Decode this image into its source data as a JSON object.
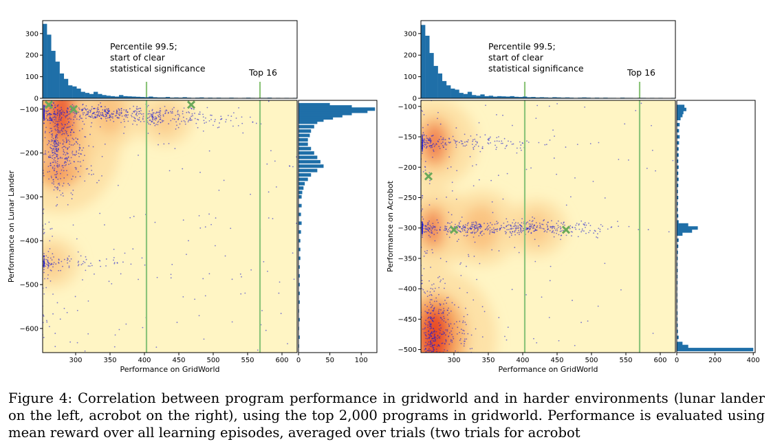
{
  "caption": {
    "line1": "Figure 4: Correlation between program performance in gridworld and in harder environments (lunar",
    "line2": "lander on the left, acrobot on the right), using the top 2,000 programs in gridworld. Performance is",
    "line3": "evaluated using mean reward over all learning episodes, averaged over trials (two trials for acrobot"
  },
  "colors": {
    "hist": "#1f6fa8",
    "points": "#2020d0",
    "marker": "#6aa95a",
    "vline": "#8cc47a"
  },
  "chart_data": [
    {
      "id": "left",
      "type": "scatter",
      "xlabel": "Performance on GridWorld",
      "ylabel": "Performance on Lunar Lander",
      "xlim": [
        252,
        622
      ],
      "ylim": [
        -655,
        -80
      ],
      "xticks": [
        300,
        350,
        400,
        450,
        500,
        550,
        600
      ],
      "yticks": [
        -100,
        -200,
        -300,
        -400,
        -500,
        -600
      ],
      "vlines": [
        403,
        568
      ],
      "annotations": [
        "Percentile 99.5;",
        "start of clear",
        "statistical significance",
        "Top 16"
      ],
      "markers": [
        [
          261,
          -90
        ],
        [
          297,
          -100
        ],
        [
          468,
          -90
        ]
      ],
      "density_centers": [
        [
          275,
          -180,
          1.0
        ],
        [
          280,
          -110,
          0.8
        ],
        [
          350,
          -108,
          0.45
        ],
        [
          430,
          -125,
          0.3
        ],
        [
          265,
          -450,
          0.3
        ]
      ],
      "top_hist": {
        "ylim": [
          0,
          360
        ],
        "yticks": [
          0,
          100,
          200,
          300
        ],
        "values": [
          345,
          295,
          220,
          170,
          115,
          90,
          60,
          55,
          45,
          30,
          25,
          20,
          30,
          20,
          15,
          12,
          10,
          8,
          15,
          10,
          9,
          8,
          7,
          6,
          5,
          8,
          5,
          4,
          4,
          6,
          3,
          4,
          3,
          5,
          3,
          2,
          3,
          4,
          2,
          3,
          2,
          3,
          2,
          2,
          3,
          2,
          1,
          2,
          3,
          2,
          1,
          2,
          2,
          3,
          1,
          2,
          1,
          2,
          1,
          2
        ]
      },
      "right_hist": {
        "xlim": [
          0,
          125
        ],
        "xticks": [
          0,
          50,
          100
        ],
        "bins": [
          [
            -90,
            50
          ],
          [
            -95,
            85
          ],
          [
            -100,
            122
          ],
          [
            -105,
            110
          ],
          [
            -110,
            85
          ],
          [
            -115,
            70
          ],
          [
            -120,
            55
          ],
          [
            -125,
            40
          ],
          [
            -130,
            30
          ],
          [
            -140,
            25
          ],
          [
            -150,
            20
          ],
          [
            -160,
            18
          ],
          [
            -170,
            15
          ],
          [
            -180,
            15
          ],
          [
            -190,
            20
          ],
          [
            -200,
            25
          ],
          [
            -210,
            30
          ],
          [
            -220,
            35
          ],
          [
            -230,
            40
          ],
          [
            -240,
            30
          ],
          [
            -250,
            20
          ],
          [
            -260,
            15
          ],
          [
            -270,
            10
          ],
          [
            -280,
            8
          ],
          [
            -290,
            6
          ],
          [
            -300,
            5
          ],
          [
            -320,
            5
          ],
          [
            -340,
            4
          ],
          [
            -360,
            5
          ],
          [
            -380,
            4
          ],
          [
            -400,
            3
          ],
          [
            -420,
            3
          ],
          [
            -440,
            3
          ],
          [
            -460,
            2
          ],
          [
            -480,
            2
          ],
          [
            -500,
            2
          ],
          [
            -520,
            2
          ],
          [
            -540,
            2
          ],
          [
            -560,
            1
          ],
          [
            -580,
            2
          ],
          [
            -600,
            1
          ],
          [
            -620,
            2
          ],
          [
            -640,
            1
          ]
        ]
      }
    },
    {
      "id": "right",
      "type": "scatter",
      "xlabel": "Performance on GridWorld",
      "ylabel": "Performance on Acrobot",
      "xlim": [
        252,
        622
      ],
      "ylim": [
        -505,
        -90
      ],
      "xticks": [
        300,
        350,
        400,
        450,
        500,
        550,
        600
      ],
      "yticks": [
        -100,
        -150,
        -200,
        -250,
        -300,
        -350,
        -400,
        -450,
        -500
      ],
      "vlines": [
        403,
        570
      ],
      "annotations": [
        "Percentile 99.5;",
        "start of clear",
        "statistical significance",
        "Top 16"
      ],
      "markers": [
        [
          263,
          -215
        ],
        [
          300,
          -303
        ],
        [
          463,
          -303
        ]
      ],
      "density_centers": [
        [
          272,
          -480,
          1.0
        ],
        [
          272,
          -160,
          0.6
        ],
        [
          270,
          -300,
          0.55
        ],
        [
          340,
          -300,
          0.5
        ],
        [
          420,
          -300,
          0.35
        ]
      ],
      "top_hist": {
        "ylim": [
          0,
          360
        ],
        "yticks": [
          0,
          100,
          200,
          300
        ],
        "values": [
          340,
          290,
          210,
          150,
          115,
          80,
          60,
          45,
          40,
          25,
          20,
          30,
          15,
          12,
          18,
          10,
          12,
          8,
          10,
          9,
          8,
          10,
          7,
          6,
          8,
          5,
          6,
          4,
          5,
          4,
          3,
          5,
          4,
          3,
          4,
          3,
          2,
          3,
          4,
          3,
          2,
          3,
          2,
          3,
          2,
          2,
          1,
          3,
          2,
          2,
          1,
          2,
          2,
          1,
          2,
          1,
          2,
          1,
          1,
          2
        ]
      },
      "right_hist": {
        "xlim": [
          0,
          410
        ],
        "xticks": [
          0,
          200,
          400
        ],
        "bins": [
          [
            -100,
            40
          ],
          [
            -105,
            50
          ],
          [
            -110,
            35
          ],
          [
            -115,
            30
          ],
          [
            -120,
            20
          ],
          [
            -130,
            15
          ],
          [
            -140,
            12
          ],
          [
            -150,
            15
          ],
          [
            -160,
            12
          ],
          [
            -170,
            10
          ],
          [
            -180,
            10
          ],
          [
            -190,
            8
          ],
          [
            -200,
            10
          ],
          [
            -210,
            8
          ],
          [
            -220,
            10
          ],
          [
            -230,
            8
          ],
          [
            -240,
            6
          ],
          [
            -250,
            8
          ],
          [
            -260,
            6
          ],
          [
            -270,
            6
          ],
          [
            -280,
            8
          ],
          [
            -290,
            10
          ],
          [
            -295,
            60
          ],
          [
            -300,
            110
          ],
          [
            -305,
            80
          ],
          [
            -310,
            30
          ],
          [
            -320,
            10
          ],
          [
            -330,
            8
          ],
          [
            -340,
            6
          ],
          [
            -350,
            5
          ],
          [
            -360,
            4
          ],
          [
            -370,
            5
          ],
          [
            -380,
            4
          ],
          [
            -390,
            4
          ],
          [
            -400,
            3
          ],
          [
            -410,
            3
          ],
          [
            -420,
            4
          ],
          [
            -430,
            3
          ],
          [
            -440,
            4
          ],
          [
            -450,
            4
          ],
          [
            -460,
            5
          ],
          [
            -470,
            6
          ],
          [
            -480,
            10
          ],
          [
            -490,
            30
          ],
          [
            -495,
            60
          ],
          [
            -500,
            400
          ]
        ]
      }
    }
  ]
}
